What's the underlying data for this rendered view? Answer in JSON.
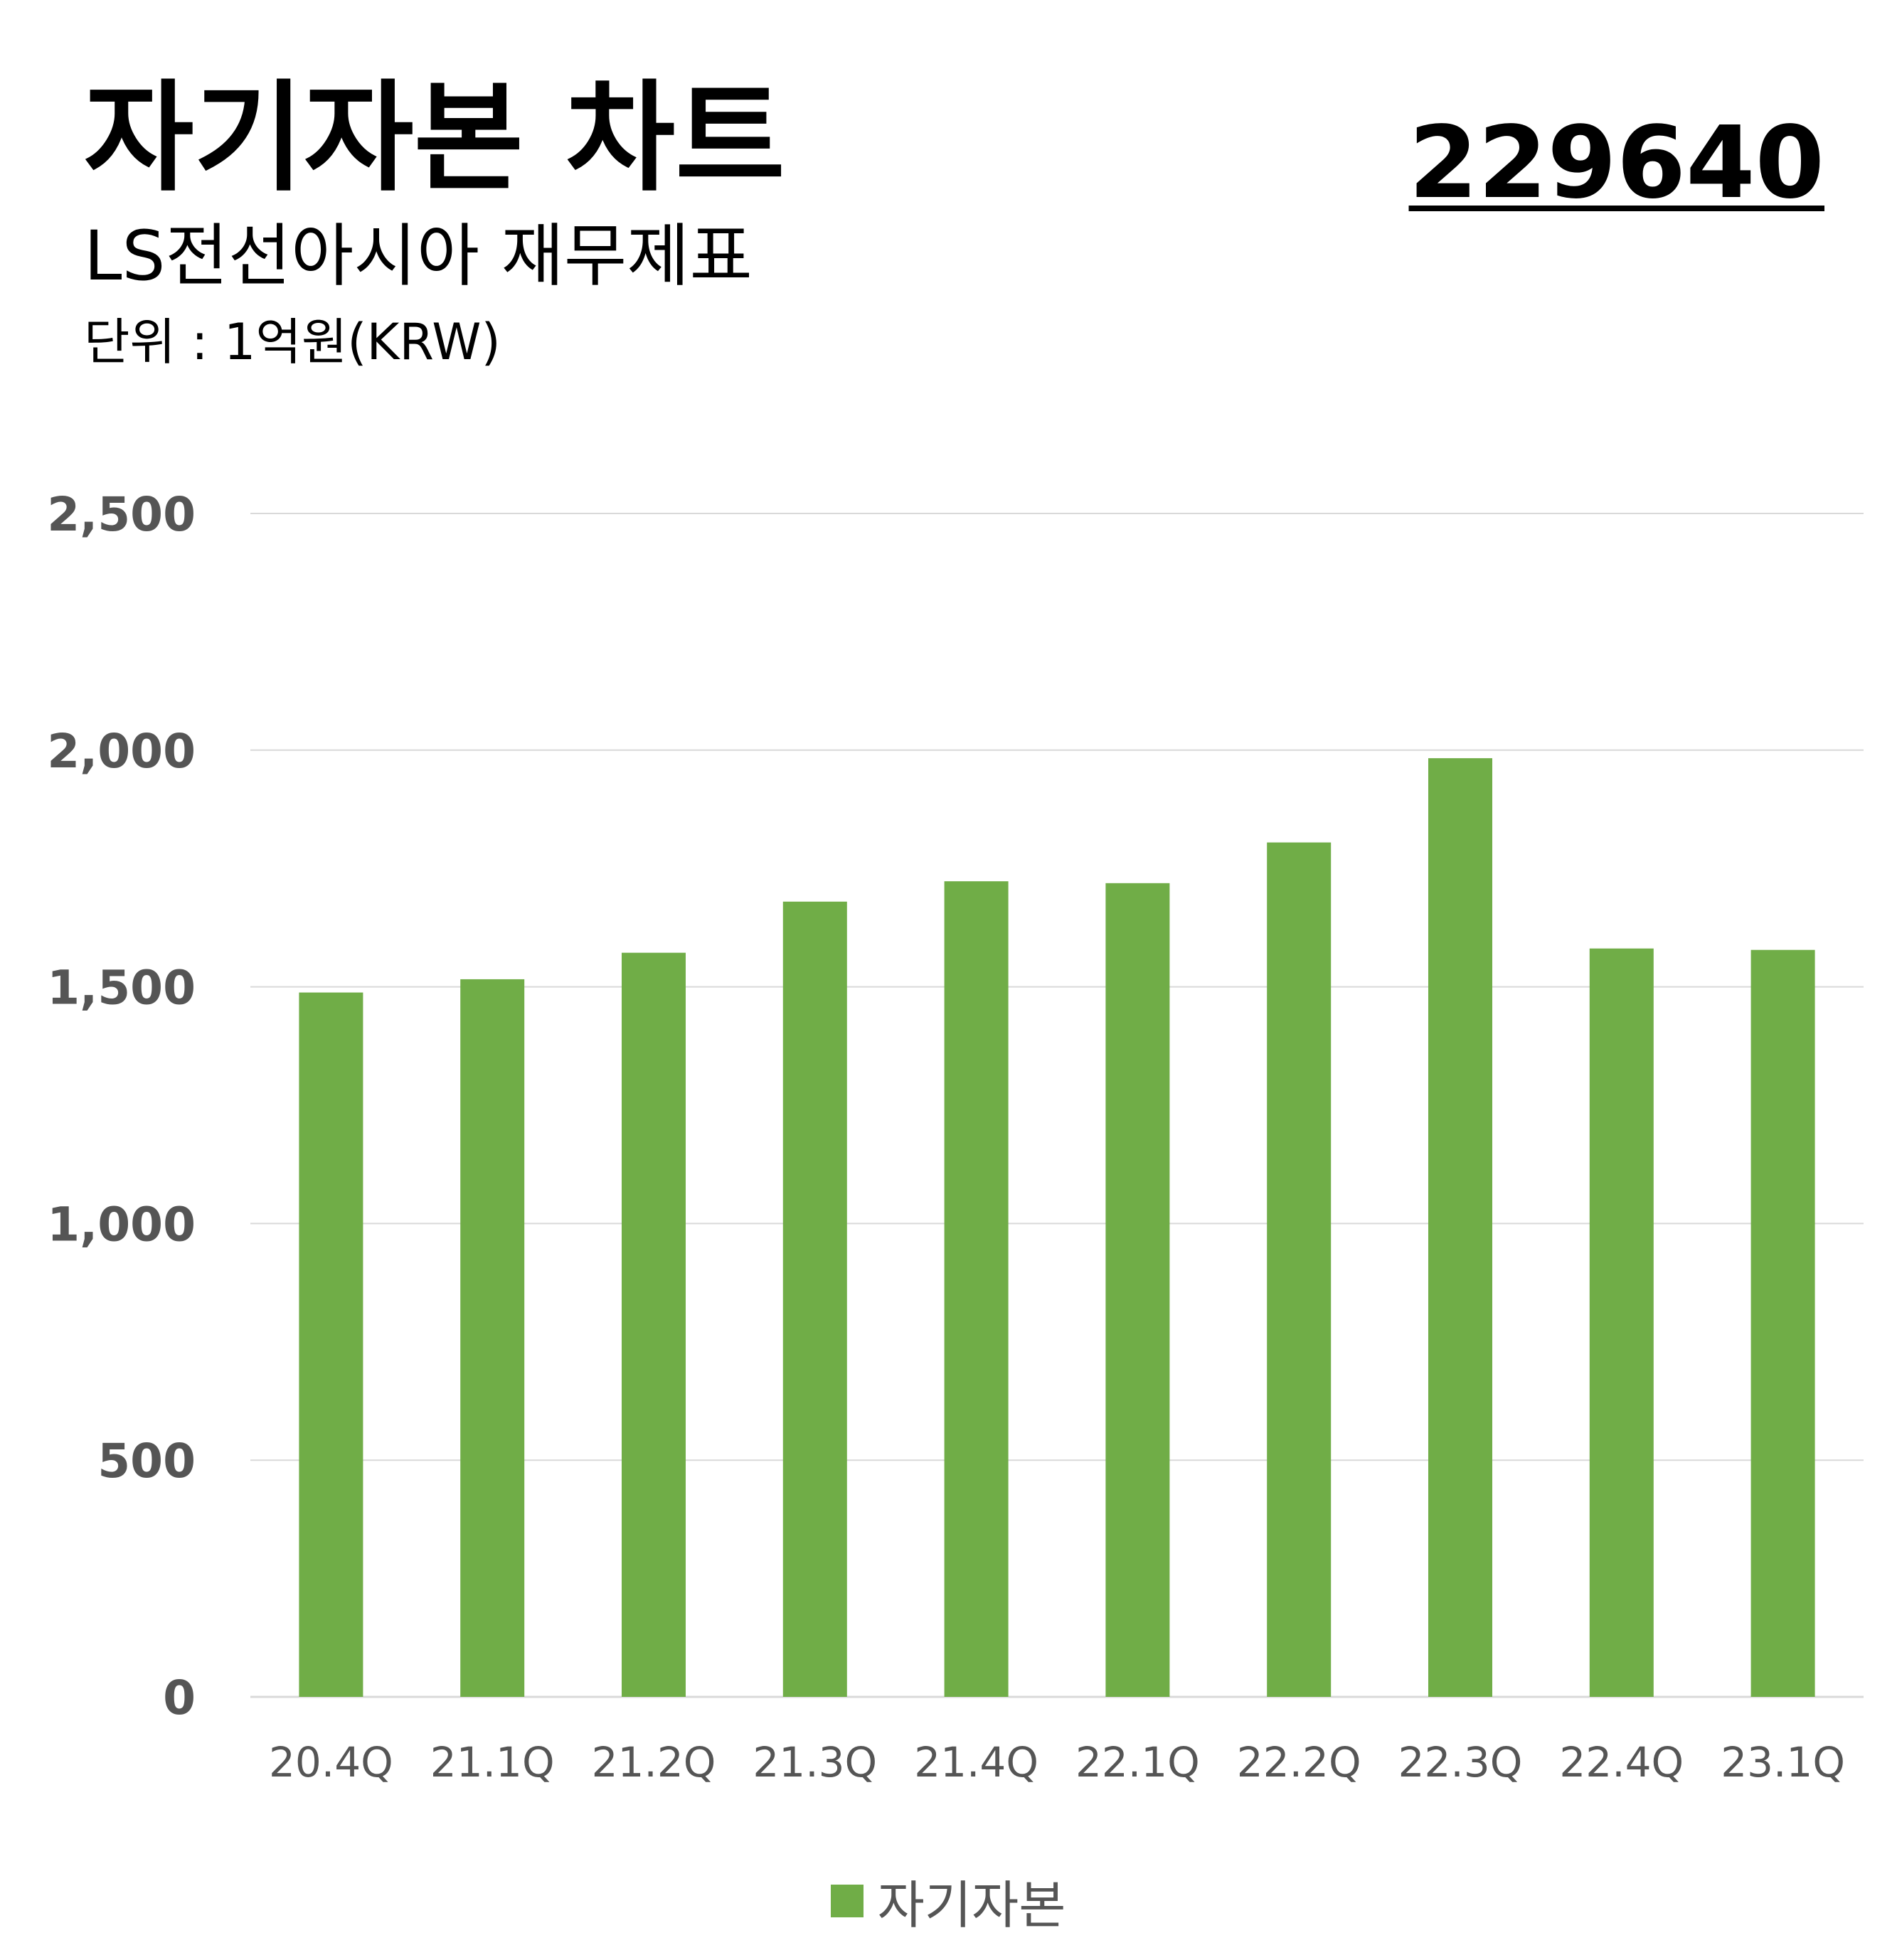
{
  "header": {
    "title": "자기자본 차트",
    "stock_code": "229640",
    "subtitle": "LS전선아시아 재무제표",
    "unit": "단위 : 1억원(KRW)"
  },
  "colors": {
    "bar": "#70AD47",
    "grid": "#D9D9D9",
    "axis_text": "#555555"
  },
  "chart_data": {
    "type": "bar",
    "categories": [
      "20.4Q",
      "21.1Q",
      "21.2Q",
      "21.3Q",
      "21.4Q",
      "22.1Q",
      "22.2Q",
      "22.3Q",
      "22.4Q",
      "23.1Q"
    ],
    "series": [
      {
        "name": "자기자본",
        "values": [
          1488,
          1516,
          1572,
          1680,
          1723,
          1719,
          1805,
          1983,
          1581,
          1578
        ]
      }
    ],
    "yticks": [
      "0",
      "500",
      "1,000",
      "1,500",
      "2,000",
      "2,500"
    ],
    "ylim": [
      0,
      2500
    ],
    "grid": true,
    "legend_position": "bottom-center"
  }
}
